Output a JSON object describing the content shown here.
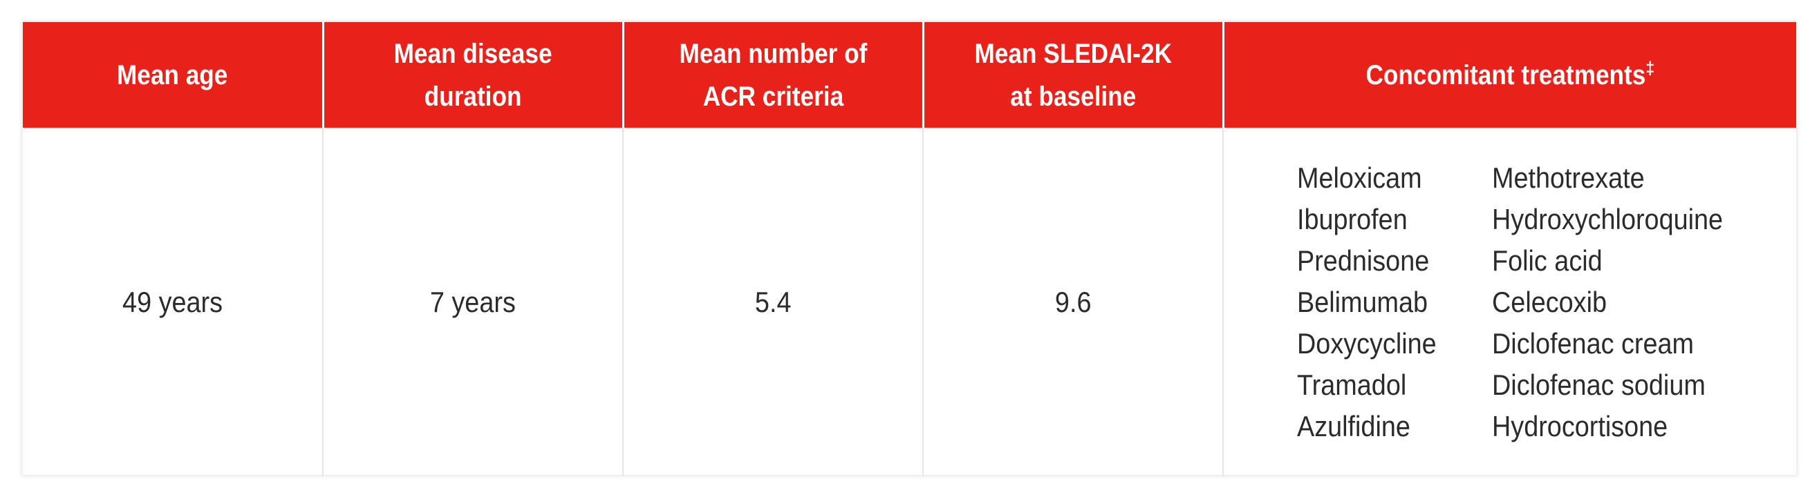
{
  "headers": {
    "age": "Mean age",
    "duration_l1": "Mean disease",
    "duration_l2": "duration",
    "acr_l1": "Mean number of",
    "acr_l2": "ACR criteria",
    "sledai_l1": "Mean SLEDAI-2K",
    "sledai_l2": "at baseline",
    "treatments": "Concomitant treatments",
    "treatments_mark": "‡"
  },
  "values": {
    "age": "49 years",
    "duration": "7 years",
    "acr": "5.4",
    "sledai": "9.6"
  },
  "treatments": {
    "left": [
      "Meloxicam",
      "Ibuprofen",
      "Prednisone",
      "Belimumab",
      "Doxycycline",
      "Tramadol",
      "Azulfidine"
    ],
    "right": [
      "Methotrexate",
      "Hydroxychloroquine",
      "Folic acid",
      "Celecoxib",
      "Diclofenac cream",
      "Diclofenac sodium",
      "Hydrocortisone"
    ]
  },
  "colors": {
    "header_bg": "#e8221a",
    "header_text": "#ffffff",
    "body_text": "#2b2b2b"
  }
}
